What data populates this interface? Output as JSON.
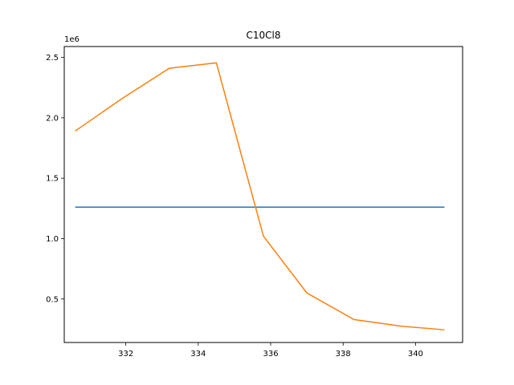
{
  "chart_data": {
    "type": "line",
    "title": "C10Cl8",
    "xlabel": "",
    "ylabel": "",
    "y_multiplier_label": "1e6",
    "xlim": [
      330.3,
      341.3
    ],
    "ylim": [
      140000,
      2590000
    ],
    "x_ticks": [
      332,
      334,
      336,
      338,
      340
    ],
    "x_tick_labels": [
      "332",
      "334",
      "336",
      "338",
      "340"
    ],
    "y_ticks": [
      500000,
      1000000,
      1500000,
      2000000,
      2500000
    ],
    "y_tick_labels": [
      "0.5",
      "1.0",
      "1.5",
      "2.0",
      "2.5"
    ],
    "grid": false,
    "series": [
      {
        "color": "#1f77b4",
        "x": [
          330.6,
          340.8
        ],
        "y": [
          1260000,
          1260000
        ]
      },
      {
        "color": "#ff7f0e",
        "x": [
          330.6,
          331.9,
          333.2,
          334.5,
          335.8,
          337.0,
          338.3,
          339.6,
          340.8
        ],
        "y": [
          1890000,
          2160000,
          2410000,
          2455000,
          1020000,
          550000,
          330000,
          275000,
          245000
        ]
      }
    ]
  }
}
